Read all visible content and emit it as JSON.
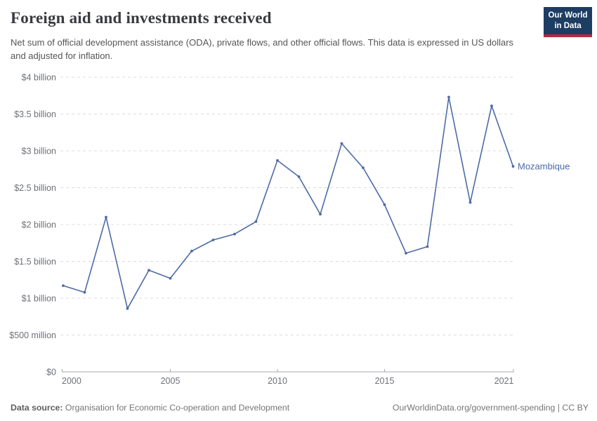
{
  "header": {
    "title": "Foreign aid and investments received",
    "subtitle": "Net sum of official development assistance (ODA), private flows, and other official flows. This data is expressed in US dollars and adjusted for inflation.",
    "logo": {
      "line1": "Our World",
      "line2": "in Data"
    }
  },
  "chart_data": {
    "type": "line",
    "title": "Foreign aid and investments received",
    "unit": "US$, inflation-adjusted",
    "x": [
      2000,
      2001,
      2002,
      2003,
      2004,
      2005,
      2006,
      2007,
      2008,
      2009,
      2010,
      2011,
      2012,
      2013,
      2014,
      2015,
      2016,
      2017,
      2018,
      2019,
      2020,
      2021
    ],
    "series": [
      {
        "name": "Mozambique",
        "color": "#4d6ba5",
        "values_billion_usd": [
          1.17,
          1.08,
          2.1,
          0.86,
          1.38,
          1.27,
          1.64,
          1.79,
          1.87,
          2.04,
          2.87,
          2.65,
          2.14,
          3.1,
          2.77,
          2.27,
          1.61,
          1.7,
          3.73,
          2.3,
          3.61,
          2.79
        ]
      }
    ],
    "ylim": [
      0,
      4
    ],
    "yticks": [
      {
        "v": 0,
        "label": "$0"
      },
      {
        "v": 0.5,
        "label": "$500 million"
      },
      {
        "v": 1,
        "label": "$1 billion"
      },
      {
        "v": 1.5,
        "label": "$1.5 billion"
      },
      {
        "v": 2,
        "label": "$2 billion"
      },
      {
        "v": 2.5,
        "label": "$2.5 billion"
      },
      {
        "v": 3,
        "label": "$3 billion"
      },
      {
        "v": 3.5,
        "label": "$3.5 billion"
      },
      {
        "v": 4,
        "label": "$4 billion"
      }
    ],
    "xticks": [
      2000,
      2005,
      2010,
      2015,
      2021
    ],
    "grid": "horizontal-dashed",
    "legend_position": "end-of-line-label",
    "end_label": "Mozambique"
  },
  "footer": {
    "source_label": "Data source:",
    "source_text": " Organisation for Economic Co-operation and Development",
    "credit": "OurWorldinData.org/government-spending | CC BY"
  },
  "colors": {
    "line": "#4d6ba5",
    "grid": "#dcdcde",
    "axis": "#a8a8a8",
    "tick_text": "#6e7177",
    "logo_bg": "#1d3d63",
    "logo_accent": "#b8293c"
  }
}
